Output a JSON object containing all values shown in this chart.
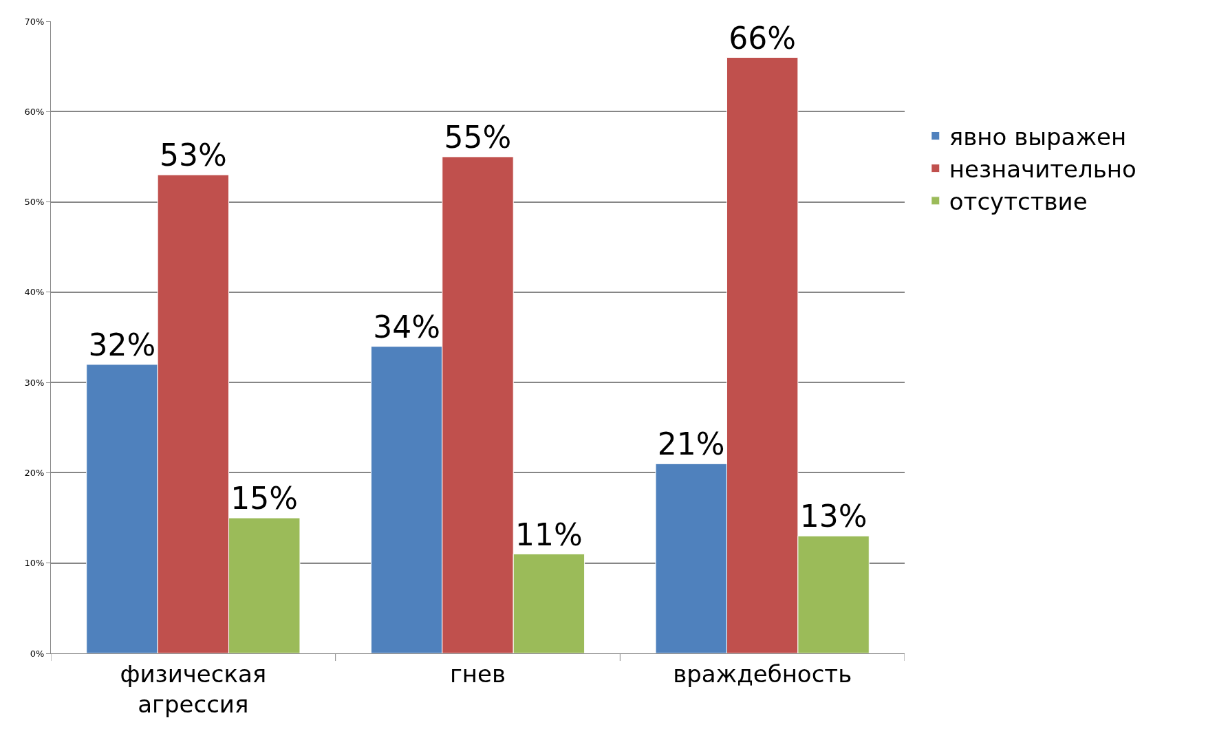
{
  "chart_data": {
    "type": "bar",
    "categories": [
      "физическая\nагрессия",
      "гнев",
      "враждебность"
    ],
    "series": [
      {
        "name": "явно выражен",
        "color": "#4f81bd",
        "values": [
          32,
          34,
          21
        ],
        "value_labels": [
          "32%",
          "34%",
          "21%"
        ]
      },
      {
        "name": "незначительно",
        "color": "#c0504d",
        "values": [
          53,
          55,
          66
        ],
        "value_labels": [
          "53%",
          "55%",
          "66%"
        ]
      },
      {
        "name": "отсутствие",
        "color": "#9bbb59",
        "values": [
          15,
          11,
          13
        ],
        "value_labels": [
          "15%",
          "11%",
          "13%"
        ]
      }
    ],
    "ylim": [
      0,
      70
    ],
    "yticks": [
      {
        "value": 0,
        "label": "0%"
      },
      {
        "value": 10,
        "label": "10%"
      },
      {
        "value": 20,
        "label": "20%"
      },
      {
        "value": 30,
        "label": "30%"
      },
      {
        "value": 40,
        "label": "40%"
      },
      {
        "value": 50,
        "label": "50%"
      },
      {
        "value": 60,
        "label": "60%"
      },
      {
        "value": 70,
        "label": "70%"
      }
    ],
    "grid": "y",
    "legend": "right"
  }
}
